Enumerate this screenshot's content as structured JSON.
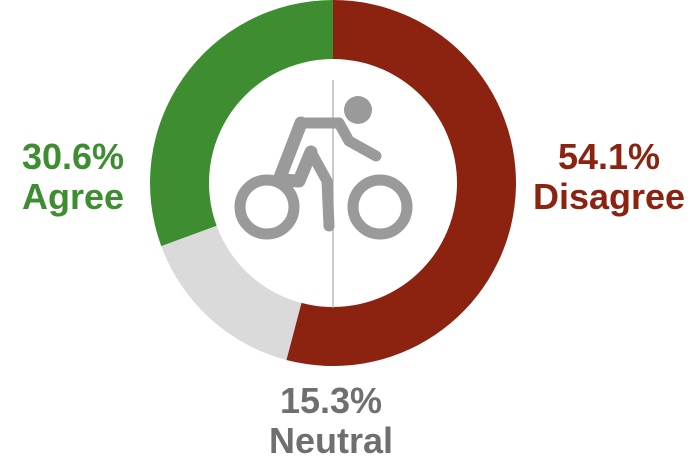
{
  "chart_data": {
    "type": "pie",
    "variant": "donut",
    "start": "top",
    "direction": "clockwise",
    "slices": [
      {
        "category": "Disagree",
        "percent_label": "54.1%",
        "value": 54.1,
        "color": "#8B2310"
      },
      {
        "category": "Neutral",
        "percent_label": "15.3%",
        "value": 15.3,
        "color": "#DADADA"
      },
      {
        "category": "Agree",
        "percent_label": "30.6%",
        "value": 30.6,
        "color": "#3E8E31"
      }
    ],
    "center_icon": "bicycle-rider-icon",
    "icon_color": "#9A9A9A",
    "divider_color": "#A8A8A8",
    "neutral_text_color": "#6F6F6F"
  }
}
